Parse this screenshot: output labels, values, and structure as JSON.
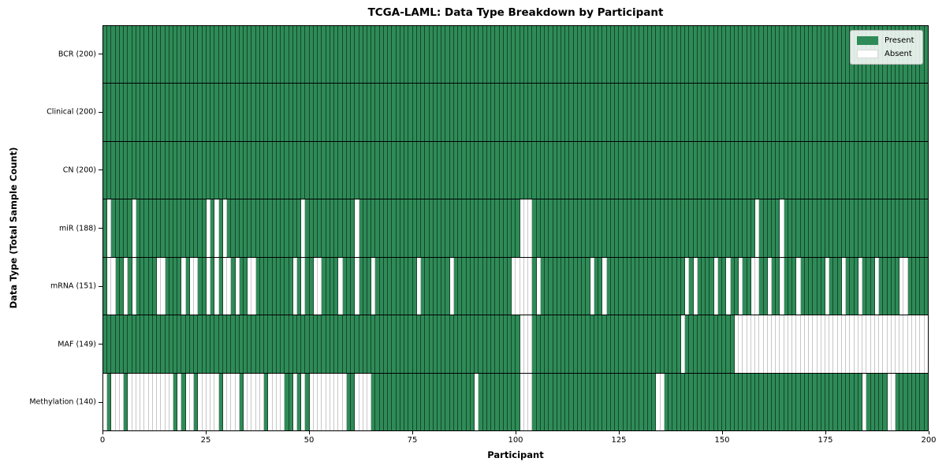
{
  "chart_data": {
    "type": "heatmap",
    "title": "TCGA-LAML: Data Type Breakdown by Participant",
    "xlabel": "Participant",
    "ylabel": "Data Type (Total Sample Count)",
    "x_range": [
      0,
      200
    ],
    "x_ticks": [
      0,
      25,
      50,
      75,
      100,
      125,
      150,
      175,
      200
    ],
    "grid": "per-cell vertical borders, black row separators",
    "colors": {
      "present": "#2e8b57",
      "absent": "#ffffff"
    },
    "legend": {
      "position": "upper right",
      "entries": [
        {
          "label": "Present",
          "color": "#2e8b57"
        },
        {
          "label": "Absent",
          "color": "#ffffff"
        }
      ]
    },
    "rows": [
      {
        "name": "BCR",
        "label": "BCR (200)",
        "present_count": 200,
        "absent": []
      },
      {
        "name": "Clinical",
        "label": "Clinical (200)",
        "present_count": 200,
        "absent": []
      },
      {
        "name": "CN",
        "label": "CN (200)",
        "present_count": 200,
        "absent": []
      },
      {
        "name": "miR",
        "label": "miR (188)",
        "present_count": 188,
        "absent": [
          1,
          7,
          25,
          27,
          29,
          48,
          61,
          101,
          102,
          103,
          158,
          164
        ]
      },
      {
        "name": "mRNA",
        "label": "mRNA (151)",
        "present_count": 151,
        "absent": [
          1,
          2,
          5,
          7,
          13,
          14,
          19,
          21,
          22,
          25,
          27,
          29,
          30,
          32,
          35,
          36,
          46,
          48,
          51,
          52,
          57,
          61,
          65,
          76,
          84,
          99,
          100,
          101,
          102,
          103,
          105,
          118,
          121,
          141,
          143,
          148,
          151,
          154,
          157,
          158,
          161,
          164,
          168,
          175,
          179,
          183,
          187,
          193,
          194
        ]
      },
      {
        "name": "MAF",
        "label": "MAF (149)",
        "present_count": 149,
        "absent": [
          101,
          102,
          103,
          140,
          153,
          154,
          155,
          156,
          157,
          158,
          159,
          160,
          161,
          162,
          163,
          164,
          165,
          166,
          167,
          168,
          169,
          170,
          171,
          172,
          173,
          174,
          175,
          176,
          177,
          178,
          179,
          180,
          181,
          182,
          183,
          184,
          185,
          186,
          187,
          188,
          189,
          190,
          191,
          192,
          193,
          194,
          195,
          196,
          197,
          198,
          199
        ]
      },
      {
        "name": "Methylation",
        "label": "Methylation (140)",
        "present_count": 140,
        "absent": [
          0,
          2,
          3,
          4,
          6,
          7,
          8,
          9,
          10,
          11,
          12,
          13,
          14,
          15,
          16,
          18,
          20,
          21,
          23,
          24,
          25,
          26,
          27,
          29,
          30,
          31,
          32,
          34,
          35,
          36,
          37,
          38,
          40,
          41,
          42,
          43,
          46,
          48,
          50,
          51,
          52,
          53,
          54,
          55,
          56,
          57,
          58,
          61,
          62,
          63,
          64,
          90,
          101,
          102,
          103,
          134,
          135,
          184,
          190,
          191
        ]
      }
    ]
  }
}
